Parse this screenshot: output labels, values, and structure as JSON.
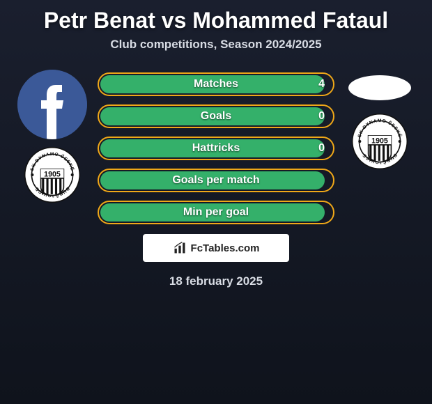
{
  "title": "Petr Benat vs Mohammed Fataul",
  "subtitle": "Club competitions, Season 2024/2025",
  "date": "18 february 2025",
  "colors": {
    "bar_border": "#f0a818",
    "bar_fill": "#34b06a",
    "text": "#ffffff",
    "subtitle": "#d8dce4",
    "bg_top": "#1a1f2e",
    "bg_bottom": "#0f131c",
    "fb_blue": "#3b5998"
  },
  "players": {
    "left": {
      "name": "Petr Benat"
    },
    "right": {
      "name": "Mohammed Fataul"
    }
  },
  "crest": {
    "year": "1905",
    "text": "SK DYNAMO ČESKÉ BUDĚJOVICE",
    "show_left": true,
    "show_right": true
  },
  "stats": [
    {
      "label": "Matches",
      "left_value": "4",
      "left_fill_pct": 97,
      "right_fill_pct": 0
    },
    {
      "label": "Goals",
      "left_value": "0",
      "left_fill_pct": 97,
      "right_fill_pct": 0
    },
    {
      "label": "Hattricks",
      "left_value": "0",
      "left_fill_pct": 97,
      "right_fill_pct": 0
    },
    {
      "label": "Goals per match",
      "left_value": "",
      "left_fill_pct": 97,
      "right_fill_pct": 0
    },
    {
      "label": "Min per goal",
      "left_value": "",
      "left_fill_pct": 97,
      "right_fill_pct": 0
    }
  ],
  "brand": {
    "text": "FcTables.com"
  }
}
